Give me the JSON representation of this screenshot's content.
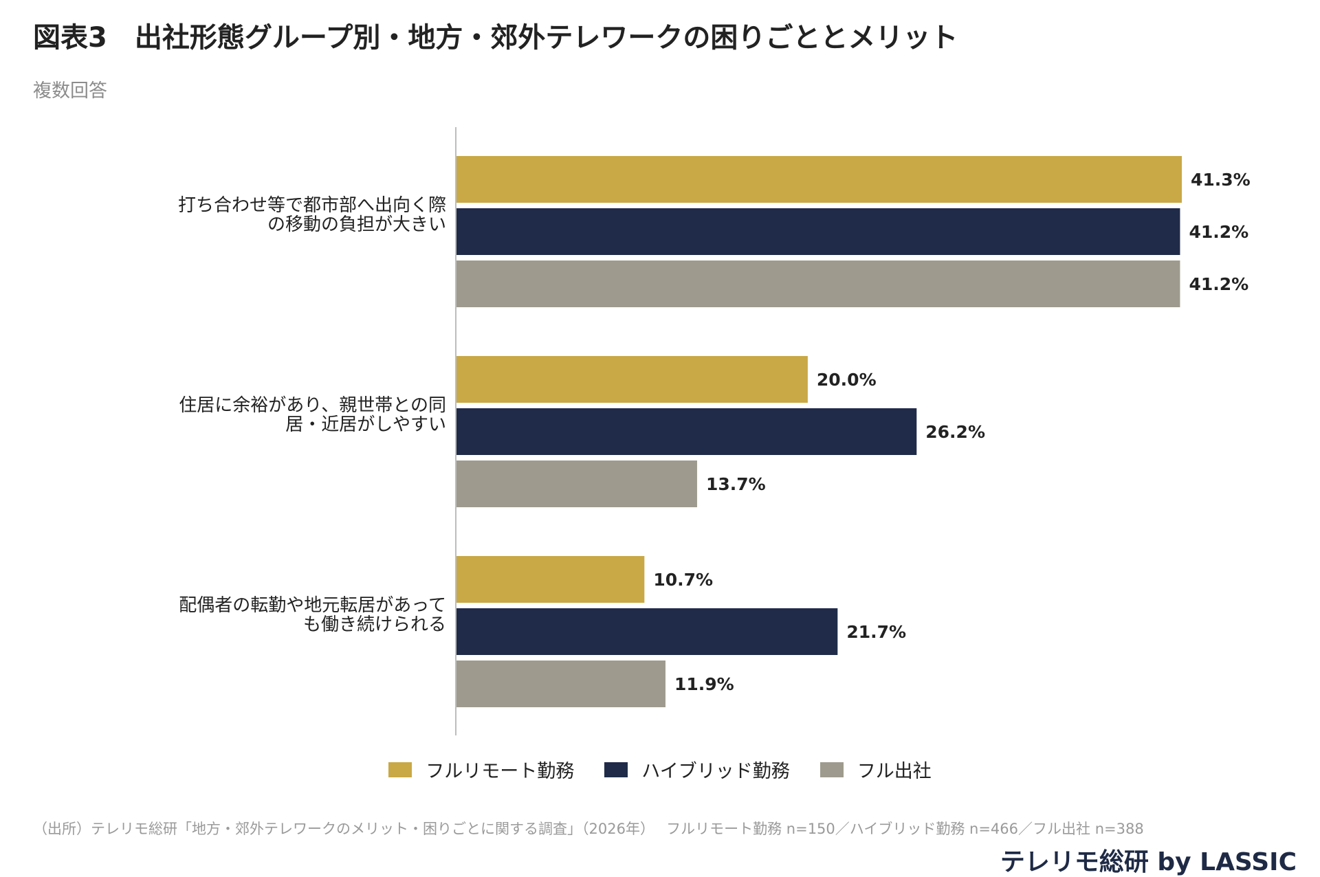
{
  "header": {
    "title": "図表3　出社形態グループ別・地方・郊外テレワークの困りごととメリット",
    "subtitle": "複数回答"
  },
  "colors": {
    "full_remote": "#c9a846",
    "hybrid": "#1f2b48",
    "full_office": "#9e9b8e",
    "axis": "#bdbdbd"
  },
  "chart_data": {
    "type": "bar",
    "orientation": "horizontal",
    "categories": [
      [
        "打ち合わせ等で都市部へ出向く際",
        "の移動の負担が大きい"
      ],
      [
        "住居に余裕があり、親世帯との同",
        "居・近居がしやすい"
      ],
      [
        "配偶者の転勤や地元転居があって",
        "も働き続けられる"
      ]
    ],
    "series": [
      {
        "name": "フルリモート勤務",
        "values": [
          41.3,
          20.0,
          10.7
        ],
        "labels": [
          "41.3%",
          "20.0%",
          "10.7%"
        ]
      },
      {
        "name": "ハイブリッド勤務",
        "values": [
          41.2,
          26.2,
          21.7
        ],
        "labels": [
          "41.2%",
          "26.2%",
          "21.7%"
        ]
      },
      {
        "name": "フル出社",
        "values": [
          41.2,
          13.7,
          11.9
        ],
        "labels": [
          "41.2%",
          "13.7%",
          "11.9%"
        ]
      }
    ],
    "xlim": [
      0,
      41.3
    ],
    "legend": "bottom",
    "grid": false
  },
  "legend": {
    "items": [
      "フルリモート勤務",
      "ハイブリッド勤務",
      "フル出社"
    ]
  },
  "footer": {
    "source": "（出所）テレリモ総研「地方・郊外テレワークのメリット・困りごとに関する調査」（2026年）　 フルリモート勤務 n=150／ハイブリッド勤務 n=466／フル出社 n=388",
    "brand": "テレリモ総研 by LASSIC"
  }
}
